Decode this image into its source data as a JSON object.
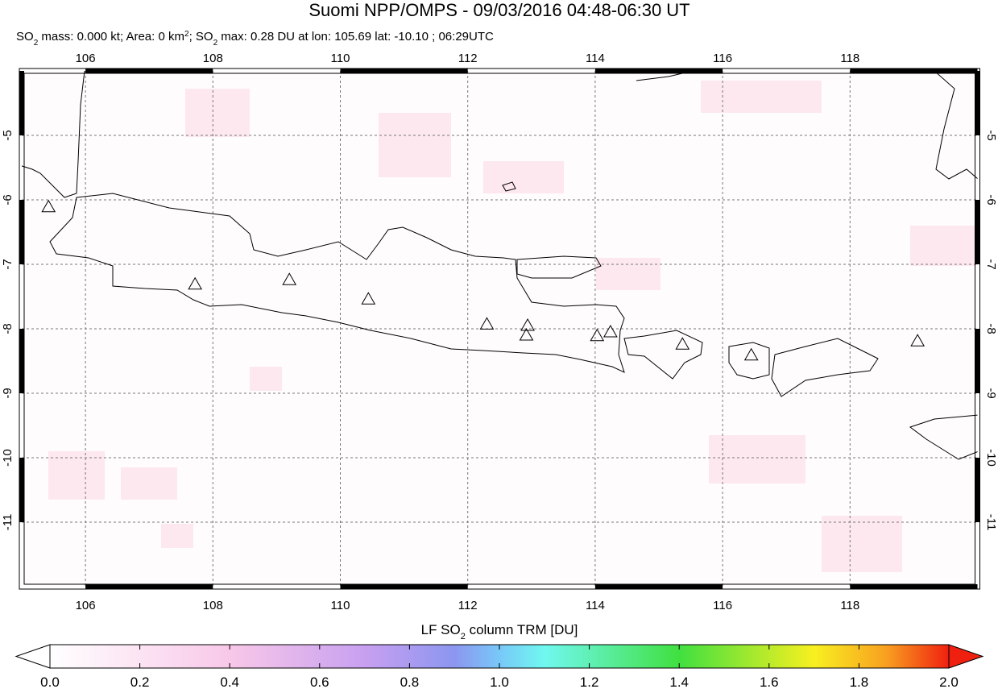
{
  "header": {
    "title": "Suomi NPP/OMPS - 09/03/2016 04:48-06:30 UT",
    "subtitle": [
      "SO",
      "2",
      " mass: 0.000 kt; Area: 0 km",
      "2",
      "; SO",
      "2",
      " max: 0.28 DU at lon: 105.69 lat: -10.10 ; 06:29UTC"
    ]
  },
  "map": {
    "xlim": [
      105,
      120
    ],
    "ylim": [
      -12,
      -4
    ],
    "xticks": [
      106,
      108,
      110,
      112,
      114,
      116,
      118
    ],
    "yticks": [
      -5,
      -6,
      -7,
      -8,
      -9,
      -10,
      -11
    ],
    "grid": true,
    "volcanoes": [
      {
        "lon": 105.42,
        "lat": -6.11
      },
      {
        "lon": 107.72,
        "lat": -7.31
      },
      {
        "lon": 109.2,
        "lat": -7.24
      },
      {
        "lon": 110.44,
        "lat": -7.54
      },
      {
        "lon": 112.3,
        "lat": -7.93
      },
      {
        "lon": 112.94,
        "lat": -7.95
      },
      {
        "lon": 112.92,
        "lat": -8.1
      },
      {
        "lon": 114.03,
        "lat": -8.11
      },
      {
        "lon": 114.24,
        "lat": -8.05
      },
      {
        "lon": 115.37,
        "lat": -8.24
      },
      {
        "lon": 116.45,
        "lat": -8.41
      },
      {
        "lon": 119.06,
        "lat": -8.19
      }
    ]
  },
  "colorbar": {
    "label": [
      "LF SO",
      "2",
      " column TRM [DU]"
    ],
    "lim": [
      0,
      2
    ],
    "ticks": [
      {
        "value": 0,
        "label": "0.0"
      },
      {
        "value": 0.2,
        "label": "0.2"
      },
      {
        "value": 0.4,
        "label": "0.4"
      },
      {
        "value": 0.6,
        "label": "0.6"
      },
      {
        "value": 0.8,
        "label": "0.8"
      },
      {
        "value": 1,
        "label": "1.0"
      },
      {
        "value": 1.2,
        "label": "1.2"
      },
      {
        "value": 1.4,
        "label": "1.4"
      },
      {
        "value": 1.6,
        "label": "1.6"
      },
      {
        "value": 1.8,
        "label": "1.8"
      },
      {
        "value": 2,
        "label": "2.0"
      }
    ]
  }
}
